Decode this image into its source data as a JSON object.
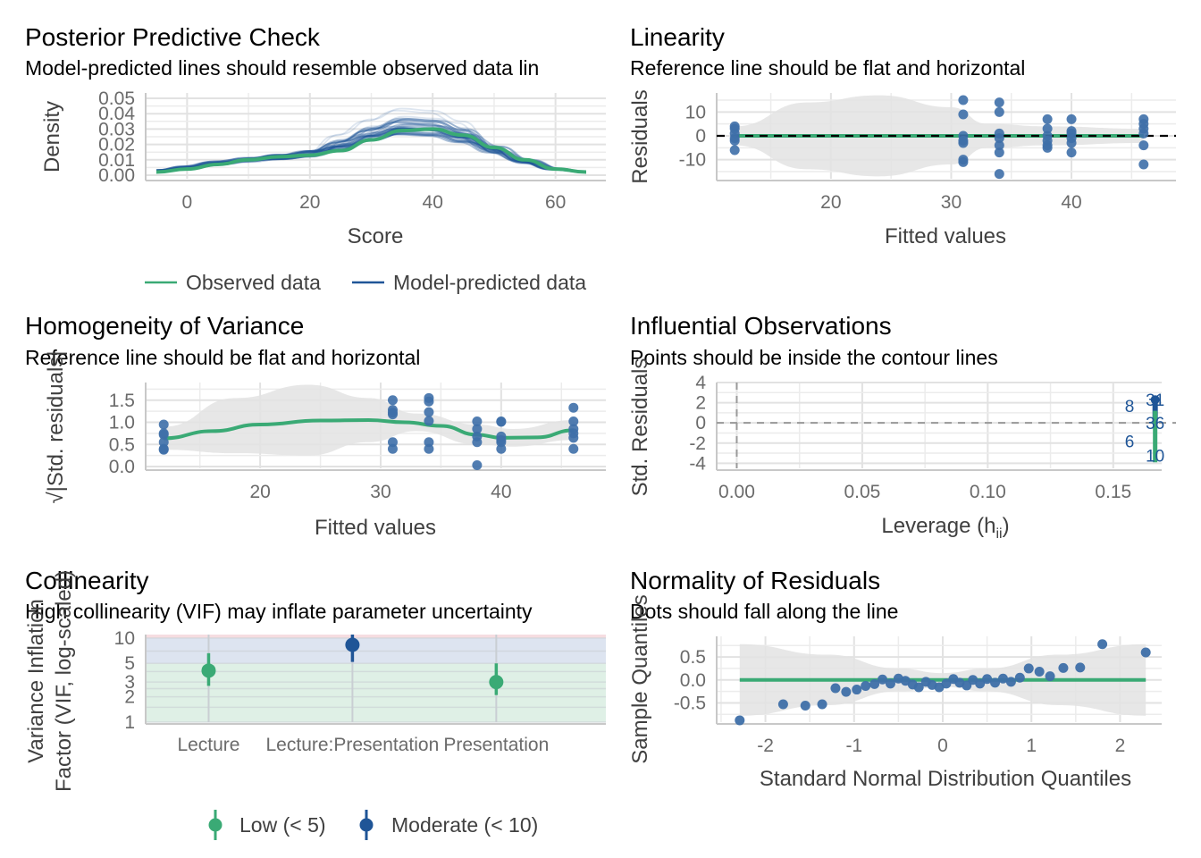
{
  "colors": {
    "observed": "#3aaa75",
    "predicted": "#1f5597",
    "points": "#3e6fa8",
    "band": "#e3e3e3",
    "grid": "#e8e8e8",
    "low_zone": "#dff0e6",
    "moderate_zone": "#dde4f0",
    "high_zone": "#f6dde1"
  },
  "chart_data": [
    {
      "id": "ppc",
      "type": "line",
      "title": "Posterior Predictive Check",
      "subtitle": "Model-predicted lines should resemble observed data lin",
      "xlabel": "Score",
      "ylabel": "Density",
      "xlim": [
        -5,
        65
      ],
      "ylim": [
        0,
        0.05
      ],
      "xticks": [
        "0",
        "20",
        "40",
        "60"
      ],
      "xtick_values": [
        0,
        20,
        40,
        60
      ],
      "yticks": [
        "0.00",
        "0.01",
        "0.02",
        "0.03",
        "0.04",
        "0.05"
      ],
      "ytick_values": [
        0,
        0.01,
        0.02,
        0.03,
        0.04,
        0.05
      ],
      "legend": {
        "placement": "bottom",
        "items": [
          {
            "label": "Observed data",
            "series": "observed"
          },
          {
            "label": "Model-predicted data",
            "series": "predicted"
          }
        ]
      },
      "series": [
        {
          "name": "Observed data",
          "x": [
            -5,
            0,
            5,
            10,
            15,
            20,
            25,
            30,
            35,
            40,
            45,
            50,
            55,
            60,
            65
          ],
          "y": [
            0.002,
            0.004,
            0.007,
            0.01,
            0.012,
            0.013,
            0.016,
            0.023,
            0.029,
            0.03,
            0.026,
            0.018,
            0.01,
            0.004,
            0.002
          ]
        },
        {
          "name": "Model-predicted data",
          "draws": 30,
          "x": [
            -5,
            0,
            5,
            10,
            15,
            20,
            25,
            30,
            35,
            40,
            45,
            50,
            55,
            60,
            65
          ],
          "y_mean": [
            0.003,
            0.005,
            0.008,
            0.01,
            0.012,
            0.014,
            0.019,
            0.026,
            0.031,
            0.03,
            0.025,
            0.017,
            0.009,
            0.004,
            0.002
          ],
          "y_peak_max": 0.05
        }
      ]
    },
    {
      "id": "linearity",
      "type": "scatter",
      "title": "Linearity",
      "subtitle": "Reference line should be flat and horizontal",
      "xlabel": "Fitted values",
      "ylabel": "Residuals",
      "xlim": [
        10.5,
        47.5
      ],
      "ylim": [
        -18,
        18
      ],
      "xticks": [
        "20",
        "30",
        "40"
      ],
      "xtick_values": [
        20,
        30,
        40
      ],
      "yticks": [
        "-10",
        "0",
        "10"
      ],
      "ytick_values": [
        -10,
        0,
        10
      ],
      "reference_line": 0,
      "points": [
        [
          12,
          4
        ],
        [
          12,
          3
        ],
        [
          12,
          1
        ],
        [
          12,
          -1
        ],
        [
          12,
          -2
        ],
        [
          12,
          -6
        ],
        [
          31,
          15
        ],
        [
          31,
          9
        ],
        [
          31,
          0
        ],
        [
          31,
          -2
        ],
        [
          31,
          -3
        ],
        [
          31,
          -10
        ],
        [
          31,
          -11
        ],
        [
          34,
          14
        ],
        [
          34,
          10
        ],
        [
          34,
          1
        ],
        [
          34,
          -1
        ],
        [
          34,
          -4
        ],
        [
          34,
          -7
        ],
        [
          34,
          -16
        ],
        [
          38,
          7
        ],
        [
          38,
          3
        ],
        [
          38,
          0
        ],
        [
          38,
          -2
        ],
        [
          38,
          -4
        ],
        [
          38,
          -5
        ],
        [
          40,
          7
        ],
        [
          40,
          2
        ],
        [
          40,
          1
        ],
        [
          40,
          -1
        ],
        [
          40,
          -3
        ],
        [
          40,
          -7
        ],
        [
          46,
          7
        ],
        [
          46,
          5
        ],
        [
          46,
          3
        ],
        [
          46,
          1
        ],
        [
          46,
          -4
        ],
        [
          46,
          -12
        ]
      ],
      "band_upper": [
        [
          12,
          4
        ],
        [
          18,
          14
        ],
        [
          24,
          17
        ],
        [
          30,
          12
        ],
        [
          33,
          5
        ],
        [
          38,
          4
        ],
        [
          46,
          3
        ]
      ],
      "band_lower": [
        [
          12,
          -4
        ],
        [
          18,
          -14
        ],
        [
          24,
          -17
        ],
        [
          30,
          -12
        ],
        [
          33,
          -5
        ],
        [
          38,
          -4
        ],
        [
          46,
          -3
        ]
      ]
    },
    {
      "id": "homogeneity",
      "type": "scatter",
      "title": "Homogeneity of Variance",
      "subtitle": "Reference line should be flat and horizontal",
      "xlabel": "Fitted values",
      "ylabel": "√|Std. residuals|",
      "xlim": [
        10.5,
        47.5
      ],
      "ylim": [
        0,
        1.9
      ],
      "xticks": [
        "20",
        "30",
        "40"
      ],
      "xtick_values": [
        20,
        30,
        40
      ],
      "yticks": [
        "0.0",
        "0.5",
        "1.0",
        "1.5"
      ],
      "ytick_values": [
        0,
        0.5,
        1.0,
        1.5
      ],
      "points": [
        [
          12,
          0.95
        ],
        [
          12,
          0.75
        ],
        [
          12,
          0.72
        ],
        [
          12,
          0.55
        ],
        [
          12,
          0.4
        ],
        [
          12,
          0.38
        ],
        [
          31,
          1.5
        ],
        [
          31,
          1.28
        ],
        [
          31,
          1.22
        ],
        [
          31,
          1.18
        ],
        [
          31,
          0.55
        ],
        [
          31,
          0.4
        ],
        [
          34,
          1.55
        ],
        [
          34,
          1.47
        ],
        [
          34,
          1.23
        ],
        [
          34,
          1.03
        ],
        [
          34,
          0.55
        ],
        [
          34,
          0.4
        ],
        [
          38,
          1.02
        ],
        [
          38,
          0.85
        ],
        [
          38,
          0.68
        ],
        [
          38,
          0.55
        ],
        [
          38,
          0.03
        ],
        [
          40,
          1.02
        ],
        [
          40,
          1.01
        ],
        [
          40,
          0.68
        ],
        [
          40,
          0.6
        ],
        [
          40,
          0.55
        ],
        [
          40,
          0.4
        ],
        [
          46,
          1.33
        ],
        [
          46,
          1.02
        ],
        [
          46,
          0.85
        ],
        [
          46,
          0.75
        ],
        [
          46,
          0.65
        ],
        [
          46,
          0.4
        ]
      ],
      "smooth": [
        [
          12,
          0.64
        ],
        [
          16,
          0.8
        ],
        [
          20,
          0.95
        ],
        [
          25,
          1.04
        ],
        [
          29,
          1.05
        ],
        [
          32,
          1.0
        ],
        [
          35,
          0.92
        ],
        [
          38,
          0.72
        ],
        [
          40,
          0.65
        ],
        [
          43,
          0.66
        ],
        [
          46,
          0.82
        ]
      ],
      "band_upper": [
        [
          12,
          0.9
        ],
        [
          18,
          1.55
        ],
        [
          24,
          1.85
        ],
        [
          29,
          1.55
        ],
        [
          33,
          1.2
        ],
        [
          38,
          0.95
        ],
        [
          41,
          0.85
        ],
        [
          46,
          1.05
        ]
      ],
      "band_lower": [
        [
          12,
          0.38
        ],
        [
          18,
          0.3
        ],
        [
          24,
          0.25
        ],
        [
          29,
          0.55
        ],
        [
          33,
          0.8
        ],
        [
          38,
          0.5
        ],
        [
          41,
          0.45
        ],
        [
          46,
          0.6
        ]
      ]
    },
    {
      "id": "influential",
      "type": "scatter",
      "title": "Influential Observations",
      "subtitle": "Points should be inside the contour lines",
      "xlabel": "Leverage (h",
      "xlabel_sub": "ii",
      "xlabel_end": ")",
      "ylabel": "Std. Residuals",
      "xlim": [
        -0.008,
        0.175
      ],
      "ylim": [
        -4.5,
        4
      ],
      "xticks": [
        "0.00",
        "0.05",
        "0.10",
        "0.15"
      ],
      "xtick_values": [
        0,
        0.05,
        0.1,
        0.15
      ],
      "yticks": [
        "-4",
        "-2",
        "0",
        "2",
        "4"
      ],
      "ytick_values": [
        -4,
        -2,
        0,
        2,
        4
      ],
      "cluster_leverage": 0.1667,
      "cluster_range": [
        -3.9,
        2.3
      ],
      "labels": [
        {
          "text": "31",
          "x": 0.1667,
          "y": 2.3
        },
        {
          "text": "8",
          "x": 0.1565,
          "y": 1.7
        },
        {
          "text": "36",
          "x": 0.1667,
          "y": 0
        },
        {
          "text": "6",
          "x": 0.1565,
          "y": -1.8
        },
        {
          "text": "10",
          "x": 0.1667,
          "y": -3.2
        }
      ]
    },
    {
      "id": "collinearity",
      "type": "scatter",
      "title": "Collinearity",
      "subtitle": "High collinearity (VIF) may inflate parameter uncertainty",
      "xlabel": "",
      "ylabel": "Variance Inflation\nFactor (VIF, log-scaled)",
      "ylabel_line1": "Variance Inflation",
      "ylabel_line2": "Factor (VIF, log-scaled)",
      "scale": "log",
      "ylim": [
        1,
        11
      ],
      "yticks": [
        "1",
        "2",
        "3",
        "5",
        "10"
      ],
      "ytick_values": [
        1,
        2,
        3,
        5,
        10
      ],
      "categories": [
        "Lecture",
        "Lecture:Presentation",
        "Presentation"
      ],
      "values": [
        4.1,
        8.3,
        3.0
      ],
      "ci_low": [
        2.7,
        5.2,
        2.1
      ],
      "ci_high": [
        6.6,
        13.0,
        5.0
      ],
      "groups": [
        "low",
        "moderate",
        "low"
      ],
      "zones": {
        "low_max": 5,
        "moderate_max": 10
      },
      "legend": {
        "placement": "bottom",
        "items": [
          {
            "label": "Low (< 5)",
            "group": "low"
          },
          {
            "label": "Moderate (< 10)",
            "group": "moderate"
          }
        ]
      }
    },
    {
      "id": "normality",
      "type": "scatter",
      "title": "Normality of Residuals",
      "subtitle": "Dots should fall along the line",
      "xlabel": "Standard Normal Distribution Quantiles",
      "ylabel": "Sample Quantiles",
      "xlim": [
        -2.55,
        2.55
      ],
      "ylim": [
        -0.92,
        0.95
      ],
      "xticks": [
        "-2",
        "-1",
        "0",
        "1",
        "2"
      ],
      "xtick_values": [
        -2,
        -1,
        0,
        1,
        2
      ],
      "yticks": [
        "-0.5",
        "0.0",
        "0.5"
      ],
      "ytick_values": [
        -0.5,
        0,
        0.5
      ],
      "points": [
        [
          -2.29,
          -0.88
        ],
        [
          -1.8,
          -0.53
        ],
        [
          -1.55,
          -0.56
        ],
        [
          -1.36,
          -0.53
        ],
        [
          -1.21,
          -0.18
        ],
        [
          -1.09,
          -0.26
        ],
        [
          -0.97,
          -0.21
        ],
        [
          -0.87,
          -0.13
        ],
        [
          -0.77,
          -0.09
        ],
        [
          -0.68,
          0.01
        ],
        [
          -0.59,
          -0.08
        ],
        [
          -0.5,
          0.03
        ],
        [
          -0.42,
          -0.02
        ],
        [
          -0.34,
          -0.1
        ],
        [
          -0.27,
          -0.16
        ],
        [
          -0.19,
          -0.04
        ],
        [
          -0.12,
          -0.11
        ],
        [
          -0.04,
          -0.16
        ],
        [
          0.04,
          -0.08
        ],
        [
          0.12,
          0.02
        ],
        [
          0.19,
          -0.06
        ],
        [
          0.27,
          -0.12
        ],
        [
          0.34,
          0.0
        ],
        [
          0.42,
          -0.08
        ],
        [
          0.5,
          0.02
        ],
        [
          0.59,
          -0.06
        ],
        [
          0.68,
          0.03
        ],
        [
          0.77,
          -0.04
        ],
        [
          0.87,
          0.05
        ],
        [
          0.97,
          0.25
        ],
        [
          1.09,
          0.18
        ],
        [
          1.21,
          0.08
        ],
        [
          1.36,
          0.26
        ],
        [
          1.55,
          0.27
        ],
        [
          1.8,
          0.78
        ],
        [
          2.29,
          0.6
        ]
      ],
      "reference_line": 0,
      "band_upper": [
        [
          -2.29,
          0.78
        ],
        [
          -1.3,
          0.55
        ],
        [
          -0.5,
          0.25
        ],
        [
          0,
          0.15
        ],
        [
          0.5,
          0.25
        ],
        [
          1.3,
          0.55
        ],
        [
          2.29,
          0.78
        ]
      ],
      "band_lower": [
        [
          -2.29,
          -0.78
        ],
        [
          -1.3,
          -0.55
        ],
        [
          -0.5,
          -0.25
        ],
        [
          0,
          -0.15
        ],
        [
          0.5,
          -0.25
        ],
        [
          1.3,
          -0.55
        ],
        [
          2.29,
          -0.78
        ]
      ]
    }
  ]
}
